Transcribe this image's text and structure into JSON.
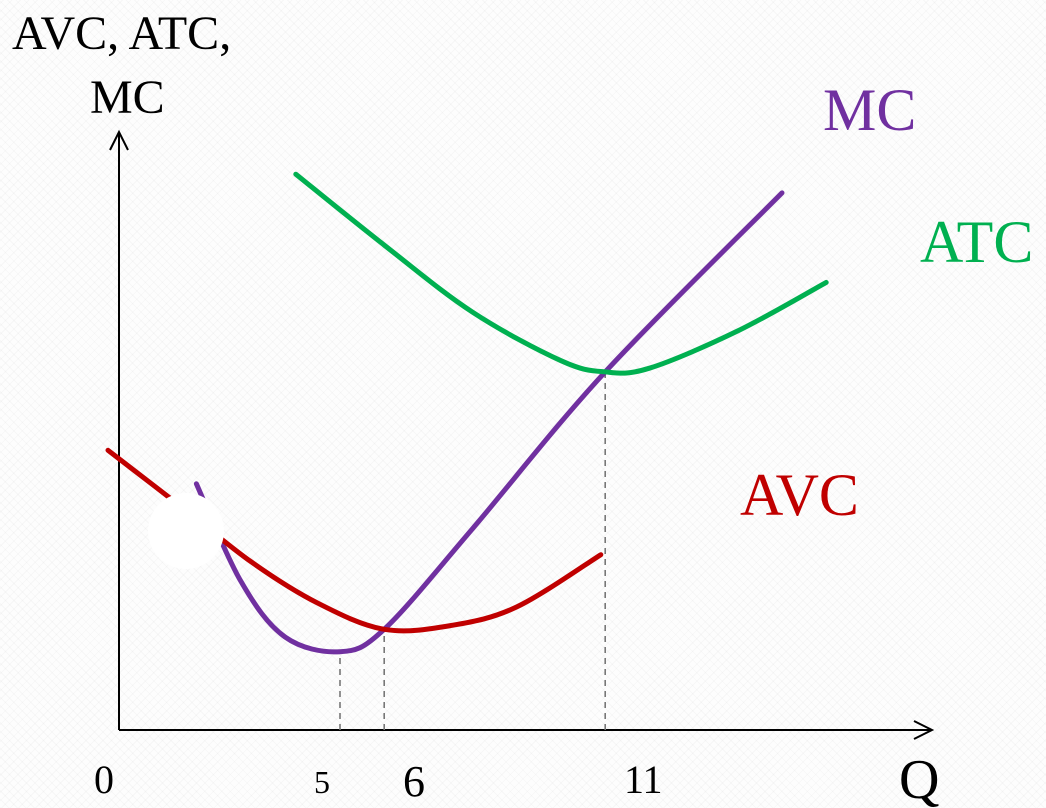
{
  "chart_data": {
    "type": "line",
    "title": "",
    "ylabel_lines": [
      "AVC, ATC,",
      "MC"
    ],
    "xlabel": "Q",
    "x_ticks": [
      {
        "value": 0,
        "label": "0"
      },
      {
        "value": 5,
        "label": "5"
      },
      {
        "value": 6,
        "label": "6"
      },
      {
        "value": 11,
        "label": "11"
      }
    ],
    "xlim": [
      0,
      20
    ],
    "ylim": [
      0,
      15
    ],
    "grid": false,
    "series": [
      {
        "name": "MC",
        "color": "#7030a0",
        "label_placement": "top-right",
        "points": [
          [
            1.75,
            6.6
          ],
          [
            2.75,
            4.0
          ],
          [
            3.75,
            2.5
          ],
          [
            5.0,
            2.1
          ],
          [
            6.0,
            2.7
          ],
          [
            8.0,
            5.4
          ],
          [
            11.0,
            9.6
          ],
          [
            15.0,
            14.4
          ]
        ]
      },
      {
        "name": "ATC",
        "color": "#00b050",
        "label_placement": "right",
        "points": [
          [
            4.0,
            14.9
          ],
          [
            6.0,
            13.0
          ],
          [
            8.0,
            11.2
          ],
          [
            10.0,
            9.9
          ],
          [
            11.0,
            9.6
          ],
          [
            12.0,
            9.7
          ],
          [
            14.0,
            10.7
          ],
          [
            16.0,
            12.0
          ]
        ]
      },
      {
        "name": "AVC",
        "color": "#c00000",
        "label_placement": "middle-right",
        "points": [
          [
            -0.25,
            7.5
          ],
          [
            1.5,
            5.9
          ],
          [
            3.0,
            4.5
          ],
          [
            4.5,
            3.4
          ],
          [
            6.0,
            2.7
          ],
          [
            7.5,
            2.8
          ],
          [
            9.0,
            3.3
          ],
          [
            10.9,
            4.7
          ]
        ]
      }
    ],
    "guides": [
      {
        "x": 5,
        "to_series": "MC",
        "style": "dashed"
      },
      {
        "x": 6,
        "to_series": "AVC",
        "style": "dashed"
      },
      {
        "x": 11,
        "to_series": "ATC",
        "style": "dashed"
      }
    ],
    "guide_y_values": {
      "5": 2.1,
      "6": 2.7,
      "11": 9.6
    }
  }
}
